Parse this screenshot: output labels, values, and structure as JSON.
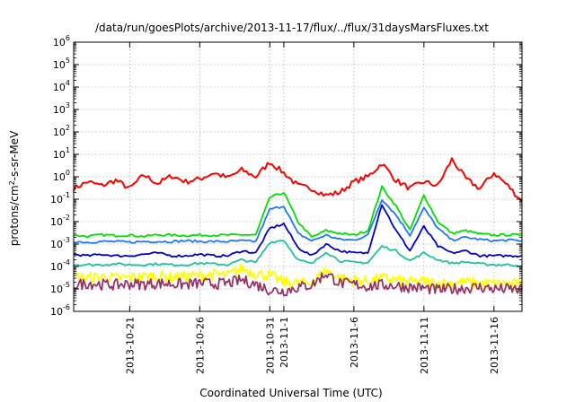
{
  "chart_data": {
    "type": "line",
    "title": "/data/run/goesPlots/archive/2013-11-17/flux/../flux/31daysMarsFluxes.txt",
    "xlabel": "Coordinated Universal Time (UTC)",
    "ylabel": {
      "base": "protons/cm",
      "sup": "2",
      "rest": "-s-sr-MeV"
    },
    "yscale": "log",
    "ylim_exponents": [
      -6,
      6
    ],
    "ytick_base": "10",
    "ytick_exponents": [
      "-6",
      "-5",
      "-4",
      "-3",
      "-2",
      "-1",
      "0",
      "1",
      "2",
      "3",
      "4",
      "5",
      "6"
    ],
    "xlim": [
      "2013-10-17",
      "2013-11-18"
    ],
    "xticks": [
      {
        "date": "2013-10-21",
        "label": "2013-10-21"
      },
      {
        "date": "2013-10-26",
        "label": "2013-10-26"
      },
      {
        "date": "2013-10-31",
        "label": "2013-10-31"
      },
      {
        "date": "2013-11-01",
        "label": "2013-11-1"
      },
      {
        "date": "2013-11-06",
        "label": "2013-11-6"
      },
      {
        "date": "2013-11-11",
        "label": "2013-11-11"
      },
      {
        "date": "2013-11-16",
        "label": "2013-11-16"
      }
    ],
    "grid": true,
    "x": [
      "2013-10-17",
      "2013-10-18",
      "2013-10-19",
      "2013-10-20",
      "2013-10-21",
      "2013-10-22",
      "2013-10-23",
      "2013-10-24",
      "2013-10-25",
      "2013-10-26",
      "2013-10-27",
      "2013-10-28",
      "2013-10-29",
      "2013-10-30",
      "2013-10-31",
      "2013-11-01",
      "2013-11-02",
      "2013-11-03",
      "2013-11-04",
      "2013-11-05",
      "2013-11-06",
      "2013-11-07",
      "2013-11-08",
      "2013-11-09",
      "2013-11-10",
      "2013-11-11",
      "2013-11-12",
      "2013-11-13",
      "2013-11-14",
      "2013-11-15",
      "2013-11-16",
      "2013-11-17",
      "2013-11-18"
    ],
    "series": [
      {
        "color": "#ff0000",
        "values": [
          0.3,
          0.6,
          0.4,
          0.7,
          0.3,
          1.2,
          0.5,
          1.1,
          0.6,
          0.8,
          1.5,
          0.9,
          2.0,
          1.0,
          4.5,
          1.5,
          0.4,
          0.3,
          0.15,
          0.2,
          0.6,
          1.0,
          4.0,
          0.7,
          0.3,
          0.6,
          0.4,
          6.0,
          0.8,
          0.3,
          1.5,
          0.4,
          0.08
        ]
      },
      {
        "color": "#00e000",
        "values": [
          0.0025,
          0.0022,
          0.0026,
          0.0024,
          0.0025,
          0.0022,
          0.0026,
          0.0025,
          0.0024,
          0.0025,
          0.0025,
          0.0025,
          0.0026,
          0.0025,
          0.12,
          0.2,
          0.01,
          0.002,
          0.004,
          0.003,
          0.0025,
          0.004,
          0.35,
          0.05,
          0.004,
          0.15,
          0.01,
          0.003,
          0.004,
          0.0028,
          0.0025,
          0.0026,
          0.0025
        ]
      },
      {
        "color": "#1e78ff",
        "values": [
          0.0013,
          0.0012,
          0.0013,
          0.0013,
          0.0012,
          0.0013,
          0.0013,
          0.0013,
          0.0014,
          0.0013,
          0.0013,
          0.0013,
          0.0014,
          0.0013,
          0.035,
          0.05,
          0.003,
          0.0014,
          0.0025,
          0.0016,
          0.0015,
          0.0025,
          0.1,
          0.02,
          0.0025,
          0.04,
          0.005,
          0.0015,
          0.002,
          0.0016,
          0.0014,
          0.0015,
          0.0014
        ]
      },
      {
        "color": "#0000cc",
        "values": [
          0.00035,
          0.0003,
          0.00035,
          0.0003,
          0.0003,
          0.00035,
          0.0004,
          0.0003,
          0.0003,
          0.00035,
          0.0003,
          0.0003,
          0.0005,
          0.0004,
          0.005,
          0.008,
          0.0007,
          0.0003,
          0.001,
          0.0005,
          0.0004,
          0.0004,
          0.06,
          0.004,
          0.0005,
          0.006,
          0.0008,
          0.0004,
          0.0005,
          0.0003,
          0.0003,
          0.0003,
          0.0003
        ]
      },
      {
        "color": "#20c0a0",
        "values": [
          0.00012,
          0.00012,
          0.00012,
          0.00013,
          0.00012,
          0.00012,
          0.00013,
          0.00012,
          0.00012,
          0.00014,
          0.00013,
          0.00012,
          0.0002,
          0.00015,
          0.0012,
          0.0015,
          0.0002,
          0.00013,
          0.00045,
          0.00018,
          0.00015,
          0.00015,
          0.0008,
          0.0005,
          0.00018,
          0.0004,
          0.0002,
          0.00014,
          0.00016,
          0.00013,
          0.00012,
          0.00012,
          0.00011
        ]
      },
      {
        "color": "#ffff00",
        "values": [
          3.5e-05,
          3e-05,
          3.5e-05,
          3e-05,
          3.2e-05,
          3.5e-05,
          4e-05,
          3.3e-05,
          3.5e-05,
          4e-05,
          4.5e-05,
          4e-05,
          8e-05,
          5e-05,
          4e-05,
          2e-05,
          1.8e-05,
          2e-05,
          7e-05,
          3e-05,
          2.5e-05,
          2.2e-05,
          3e-05,
          2.5e-05,
          2e-05,
          2.2e-05,
          1.8e-05,
          1.8e-05,
          2e-05,
          1.8e-05,
          1.7e-05,
          1.7e-05,
          1.6e-05
        ]
      },
      {
        "color": "#993366",
        "values": [
          1.5e-05,
          1.8e-05,
          1.6e-05,
          1.5e-05,
          1.7e-05,
          1.6e-05,
          1.8e-05,
          1.7e-05,
          1.6e-05,
          1.8e-05,
          1.7e-05,
          1.8e-05,
          2.5e-05,
          1.6e-05,
          9e-06,
          8e-06,
          1.2e-05,
          1.5e-05,
          5e-05,
          1.8e-05,
          1.6e-05,
          1.3e-05,
          1.5e-05,
          1.4e-05,
          1.2e-05,
          1.1e-05,
          9e-06,
          1e-05,
          1.1e-05,
          1.2e-05,
          1e-05,
          1e-05,
          9e-06
        ]
      }
    ]
  }
}
